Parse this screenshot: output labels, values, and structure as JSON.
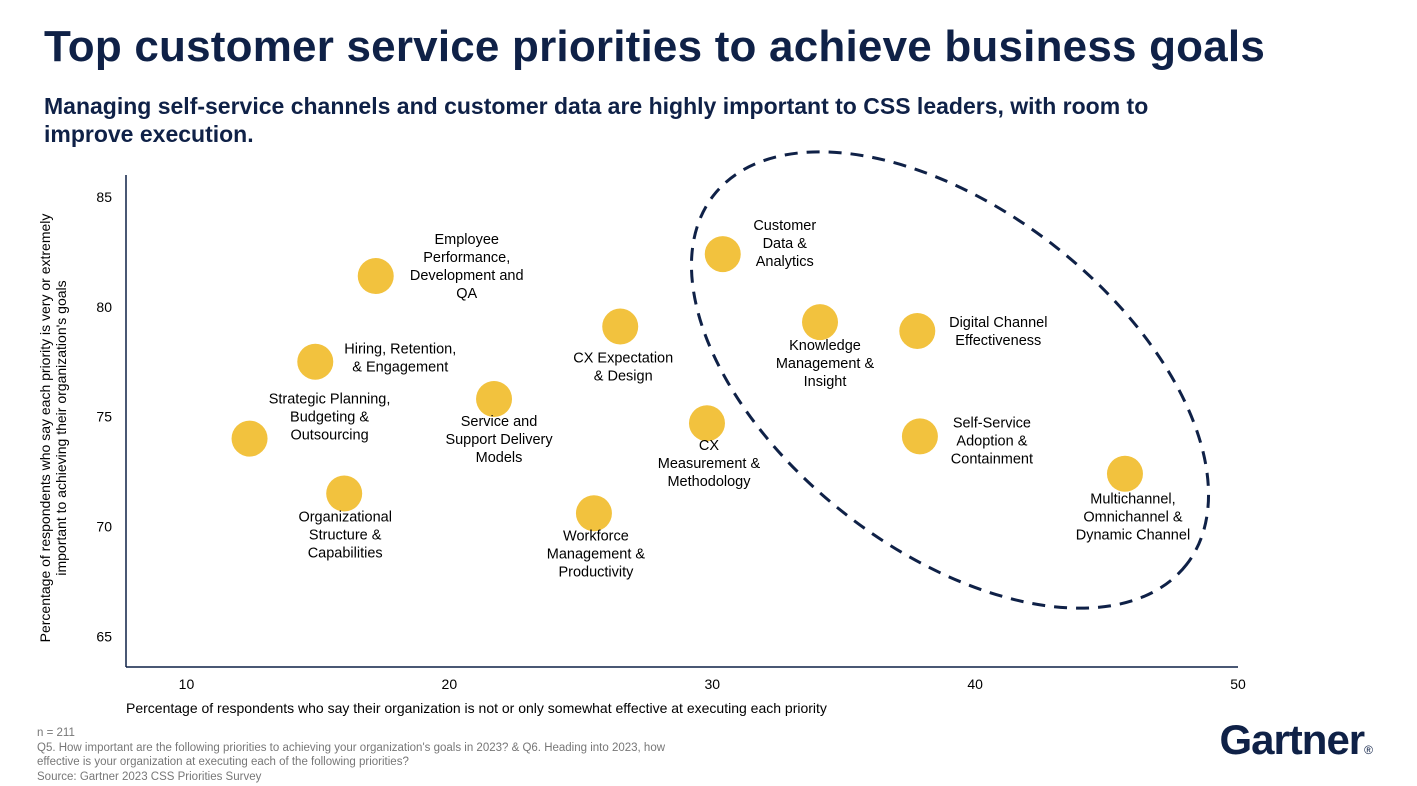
{
  "header": {
    "title": "Top customer service priorities to achieve business goals",
    "subtitle": "Managing self-service channels and customer data are highly important to CSS leaders, with room to improve execution."
  },
  "colors": {
    "navy": "#0f2147",
    "bubble": "#f2c23e"
  },
  "chart_data": {
    "type": "scatter",
    "xlabel": "Percentage of respondents who say their organization is not or only somewhat effective at executing each priority",
    "ylabel_lines": [
      "Percentage of respondents who say each priority is very or extremely",
      "important to achieving their organization's goals"
    ],
    "xlim": [
      7.7,
      50
    ],
    "ylim": [
      63.6,
      86
    ],
    "xticks": [
      10,
      20,
      30,
      40,
      50
    ],
    "yticks": [
      65,
      70,
      75,
      80,
      85
    ],
    "grid": false,
    "highlight": "dashed ellipse around Customer Data & Analytics, Knowledge Management & Insight, Digital Channel Effectiveness, Self-Service Adoption & Containment, Multichannel, Omnichannel & Dynamic Channel",
    "points": [
      {
        "label": [
          "Employee",
          "Performance,",
          "Development and",
          "QA"
        ],
        "x": 17.2,
        "y": 81.4
      },
      {
        "label": [
          "Hiring, Retention,",
          "& Engagement"
        ],
        "x": 14.9,
        "y": 77.5
      },
      {
        "label": [
          "Strategic Planning,",
          "Budgeting &",
          "Outsourcing"
        ],
        "x": 12.4,
        "y": 74.0
      },
      {
        "label": [
          "Organizational",
          "Structure &",
          "Capabilities"
        ],
        "x": 16.0,
        "y": 71.5
      },
      {
        "label": [
          "Service and",
          "Support Delivery",
          "Models"
        ],
        "x": 21.7,
        "y": 75.8
      },
      {
        "label": [
          "CX Expectation",
          "& Design"
        ],
        "x": 26.5,
        "y": 79.1
      },
      {
        "label": [
          "Workforce",
          "Management &",
          "Productivity"
        ],
        "x": 25.5,
        "y": 70.6
      },
      {
        "label": [
          "CX",
          "Measurement &",
          "Methodology"
        ],
        "x": 29.8,
        "y": 74.7
      },
      {
        "label": [
          "Customer",
          "Data &",
          "Analytics"
        ],
        "x": 30.4,
        "y": 82.4
      },
      {
        "label": [
          "Knowledge",
          "Management &",
          "Insight"
        ],
        "x": 34.1,
        "y": 79.3
      },
      {
        "label": [
          "Digital Channel",
          "Effectiveness"
        ],
        "x": 37.8,
        "y": 78.9
      },
      {
        "label": [
          "Self-Service",
          "Adoption &",
          "Containment"
        ],
        "x": 37.9,
        "y": 74.1
      },
      {
        "label": [
          "Multichannel,",
          "Omnichannel &",
          "Dynamic Channel"
        ],
        "x": 45.7,
        "y": 72.4
      }
    ]
  },
  "footnotes": {
    "n": "n = 211",
    "question_lines": [
      "Q5. How important are the following priorities to achieving your organization's goals in 2023? & Q6. Heading into 2023, how",
      "effective is your organization at executing each of the following priorities?"
    ],
    "source": "Source: Gartner 2023 CSS Priorities Survey"
  },
  "logo": {
    "text": "Gartner",
    "mark": "®"
  }
}
